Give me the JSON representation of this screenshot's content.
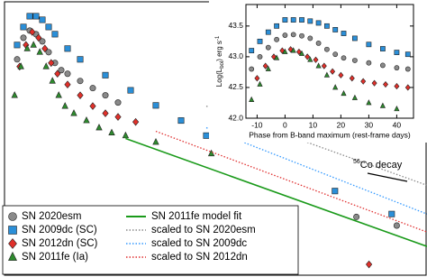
{
  "chart_data": [
    {
      "type": "scatter",
      "xlim": [
        -20,
        315
      ],
      "ylim": [
        40.0,
        43.8
      ],
      "annotation": {
        "sup": "56",
        "text": "Co decay"
      },
      "series": [
        {
          "name": "SN 2020esm",
          "marker": "circle",
          "color": "#8a8a8a",
          "x": [
            -10,
            -5,
            0,
            5,
            10,
            15,
            20,
            25,
            30,
            40,
            50,
            60,
            70,
            259,
            291
          ],
          "values": [
            43.0,
            43.3,
            43.4,
            43.35,
            43.25,
            43.1,
            42.95,
            42.85,
            42.8,
            42.7,
            42.6,
            42.5,
            42.4,
            40.81,
            40.69
          ]
        },
        {
          "name": "SN 2009dc (SC)",
          "marker": "square",
          "color": "#2b8fd8",
          "x": [
            -10,
            -5,
            0,
            5,
            10,
            15,
            20,
            30,
            40,
            60,
            80,
            100,
            120,
            140,
            242,
            287
          ],
          "values": [
            43.2,
            43.45,
            43.6,
            43.6,
            43.55,
            43.45,
            43.35,
            43.15,
            43.0,
            42.78,
            42.57,
            42.36,
            42.15,
            41.94,
            41.17,
            40.85
          ]
        },
        {
          "name": "SN 2012dn (SC)",
          "marker": "diamond",
          "color": "#e0302a",
          "x": [
            -8,
            -3,
            2,
            7,
            12,
            17,
            22,
            30,
            40,
            50,
            60,
            70,
            84,
            269
          ],
          "values": [
            42.9,
            43.2,
            43.38,
            43.3,
            43.15,
            42.95,
            42.8,
            42.65,
            42.5,
            42.35,
            42.25,
            42.2,
            42.13,
            40.15
          ]
        },
        {
          "name": "SN 2011fe (Ia)",
          "marker": "triangle",
          "color": "#2e8b2e",
          "x": [
            -12,
            -7,
            -2,
            3,
            8,
            13,
            18,
            23,
            28,
            35,
            45,
            55,
            65,
            76,
            100,
            144
          ],
          "values": [
            42.5,
            42.9,
            43.15,
            43.2,
            43.1,
            42.9,
            42.7,
            42.5,
            42.35,
            42.25,
            42.15,
            42.05,
            41.98,
            41.94,
            41.85,
            41.69
          ]
        },
        {
          "name": "SN 2011fe model fit",
          "marker": "line",
          "dash": false,
          "color": "#1a9a1a",
          "text_color": "#000000",
          "x": [
            76,
            315
          ],
          "values": [
            41.9,
            40.4
          ]
        },
        {
          "name": "scaled to SN 2020esm",
          "marker": "line",
          "dash": true,
          "color": "#8a8a8a",
          "x": [
            140,
            315
          ],
          "values": [
            42.35,
            41.25
          ]
        },
        {
          "name": "scaled to SN 2009dc",
          "marker": "line",
          "dash": true,
          "color": "#3399ff",
          "x": [
            140,
            315
          ],
          "values": [
            42.05,
            40.85
          ]
        },
        {
          "name": "scaled to SN 2012dn",
          "marker": "line",
          "dash": true,
          "color": "#e03030",
          "x": [
            100,
            315
          ],
          "values": [
            42.0,
            40.6
          ]
        }
      ]
    },
    {
      "type": "scatter",
      "xlabel": "Phase from B-band maximum (rest-frame days)",
      "ylabel": {
        "pre": "Log(L",
        "sub": "bol",
        "mid": ") erg s",
        "sup": "-1"
      },
      "xlim": [
        -14,
        46
      ],
      "ylim": [
        42.0,
        43.85
      ],
      "xticks": [
        -10,
        0,
        10,
        20,
        30,
        40
      ],
      "yticks": [
        {
          "value": 42.0,
          "label": "42.0"
        },
        42.5,
        {
          "value": 43.0,
          "label": "43.0"
        },
        43.5
      ],
      "series": [
        {
          "marker": "square",
          "color": "#2b8fd8",
          "x": [
            -12,
            -9,
            -6,
            -3,
            0,
            3,
            6,
            9,
            12,
            15,
            18,
            21,
            25,
            30,
            35,
            40,
            44
          ],
          "values": [
            43.1,
            43.25,
            43.4,
            43.5,
            43.6,
            43.6,
            43.6,
            43.58,
            43.55,
            43.5,
            43.44,
            43.38,
            43.3,
            43.2,
            43.13,
            43.07,
            43.04
          ]
        },
        {
          "marker": "circle",
          "color": "#8a8a8a",
          "x": [
            -12,
            -9,
            -6,
            -3,
            0,
            3,
            6,
            9,
            12,
            15,
            18,
            21,
            25,
            30,
            35,
            40,
            44
          ],
          "values": [
            42.8,
            43.0,
            43.15,
            43.28,
            43.35,
            43.36,
            43.34,
            43.3,
            43.22,
            43.12,
            43.04,
            42.98,
            42.94,
            42.9,
            42.86,
            42.82,
            42.8
          ]
        },
        {
          "marker": "diamond",
          "color": "#e0302a",
          "x": [
            -10,
            -7,
            -4,
            -1,
            2,
            5,
            8,
            11,
            14,
            17,
            20,
            24,
            28,
            32,
            36,
            40,
            44
          ],
          "values": [
            42.65,
            42.85,
            43.0,
            43.1,
            43.12,
            43.08,
            43.0,
            42.95,
            42.85,
            42.76,
            42.7,
            42.65,
            42.6,
            42.57,
            42.55,
            42.52,
            42.5
          ]
        },
        {
          "marker": "triangle",
          "color": "#2e8b2e",
          "x": [
            -12,
            -9,
            -6,
            -3,
            0,
            3,
            6,
            9,
            12,
            15,
            18,
            21,
            25,
            30,
            35,
            40
          ],
          "values": [
            42.3,
            42.55,
            42.8,
            42.98,
            43.08,
            43.1,
            43.05,
            42.95,
            42.85,
            42.7,
            42.5,
            42.4,
            42.33,
            42.25,
            42.2,
            42.15
          ]
        }
      ]
    }
  ]
}
